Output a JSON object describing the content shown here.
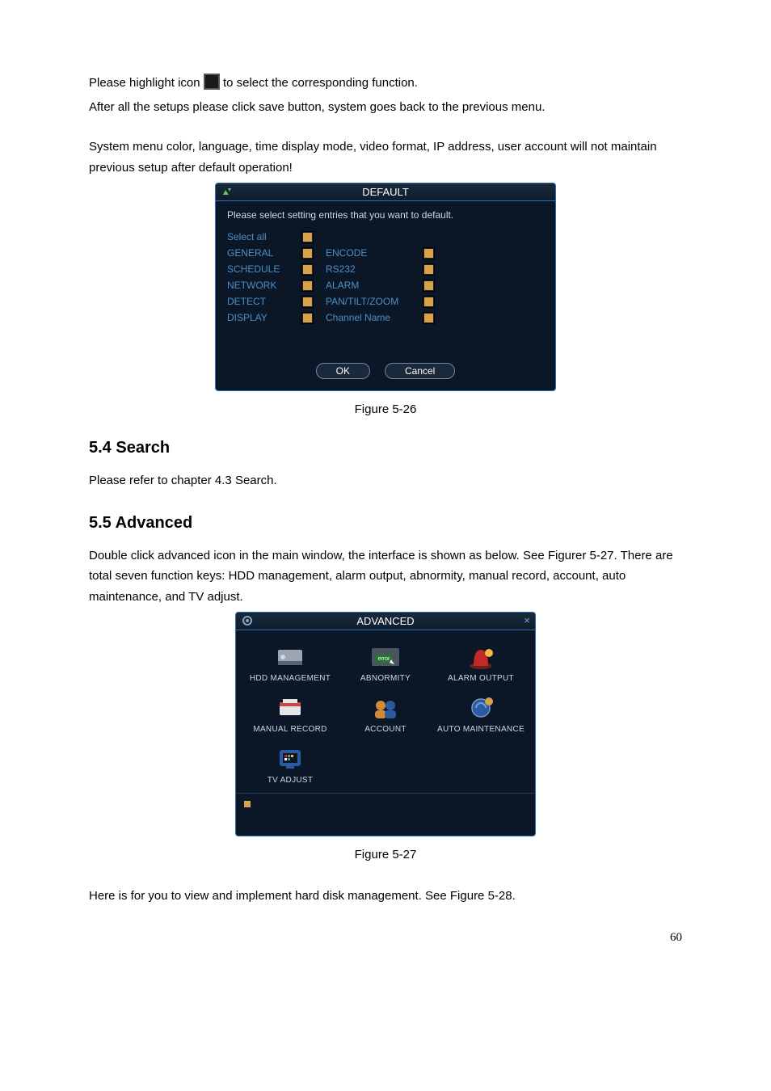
{
  "intro": {
    "line1a": "Please highlight icon ",
    "line1b": " to select the corresponding function.",
    "line2": "After all the setups please click save button, system goes back to the previous menu.",
    "line3": "System menu color, language, time display mode, video format, IP address, user account will not maintain previous setup after default operation!"
  },
  "default_dialog": {
    "title": "DEFAULT",
    "instruction": "Please select setting entries that you want to default.",
    "rows": [
      {
        "left": "Select all"
      },
      {
        "left": "GENERAL",
        "right": "ENCODE"
      },
      {
        "left": "SCHEDULE",
        "right": "RS232"
      },
      {
        "left": "NETWORK",
        "right": "ALARM"
      },
      {
        "left": "DETECT",
        "right": "PAN/TILT/ZOOM"
      },
      {
        "left": "DISPLAY",
        "right": "Channel Name"
      }
    ],
    "ok": "OK",
    "cancel": "Cancel",
    "checkbox_color": "#d9a24a",
    "text_color": "#4c8fc9"
  },
  "figure26": "Figure 5-26",
  "search": {
    "heading": "5.4  Search",
    "body": "Please refer to chapter 4.3 Search."
  },
  "advanced": {
    "heading": "5.5  Advanced",
    "body": "Double click advanced icon in the main window, the interface is shown as below. See Figurer 5-27. There are total seven function keys: HDD management, alarm output, abnormity, manual record, account, auto maintenance, and TV adjust."
  },
  "adv_dialog": {
    "title": "ADVANCED",
    "items": [
      {
        "label": "HDD MANAGEMENT",
        "icon": "hdd"
      },
      {
        "label": "ABNORMITY",
        "icon": "error"
      },
      {
        "label": "ALARM OUTPUT",
        "icon": "alarm"
      },
      {
        "label": "MANUAL RECORD",
        "icon": "record"
      },
      {
        "label": "ACCOUNT",
        "icon": "account"
      },
      {
        "label": "AUTO MAINTENANCE",
        "icon": "maint"
      },
      {
        "label": "TV ADJUST",
        "icon": "tv"
      }
    ]
  },
  "figure27": "Figure 5-27",
  "closing": "Here is for you to view and implement hard disk management. See Figure 5-28.",
  "page_number": "60",
  "colors": {
    "window_bg": "#0b1726",
    "window_border": "#2a6fb5",
    "label_blue": "#4c8fc9",
    "checkbox": "#d9a24a"
  }
}
